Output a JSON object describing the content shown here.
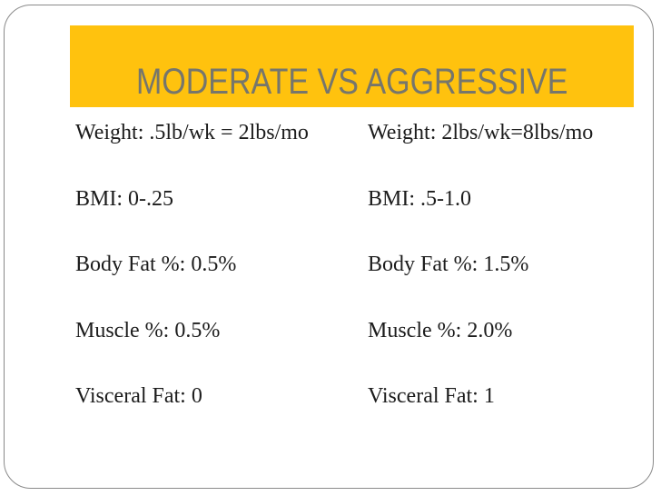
{
  "slide": {
    "title": "MODERATE VS AGGRESSIVE",
    "rows": [
      {
        "moderate": "Weight: .5lb/wk = 2lbs/mo",
        "aggressive": "Weight: 2lbs/wk=8lbs/mo"
      },
      {
        "moderate": "BMI: 0-.25",
        "aggressive": "BMI: .5-1.0"
      },
      {
        "moderate": "Body Fat %: 0.5%",
        "aggressive": "Body Fat %: 1.5%"
      },
      {
        "moderate": "Muscle %: 0.5%",
        "aggressive": "Muscle %: 2.0%"
      },
      {
        "moderate": "Visceral Fat: 0",
        "aggressive": "Visceral Fat: 1"
      }
    ],
    "colors": {
      "accent": "#FFC20E",
      "title_text": "#76766C",
      "body_text": "#1c1c1c",
      "border": "#8a8a8a"
    }
  }
}
